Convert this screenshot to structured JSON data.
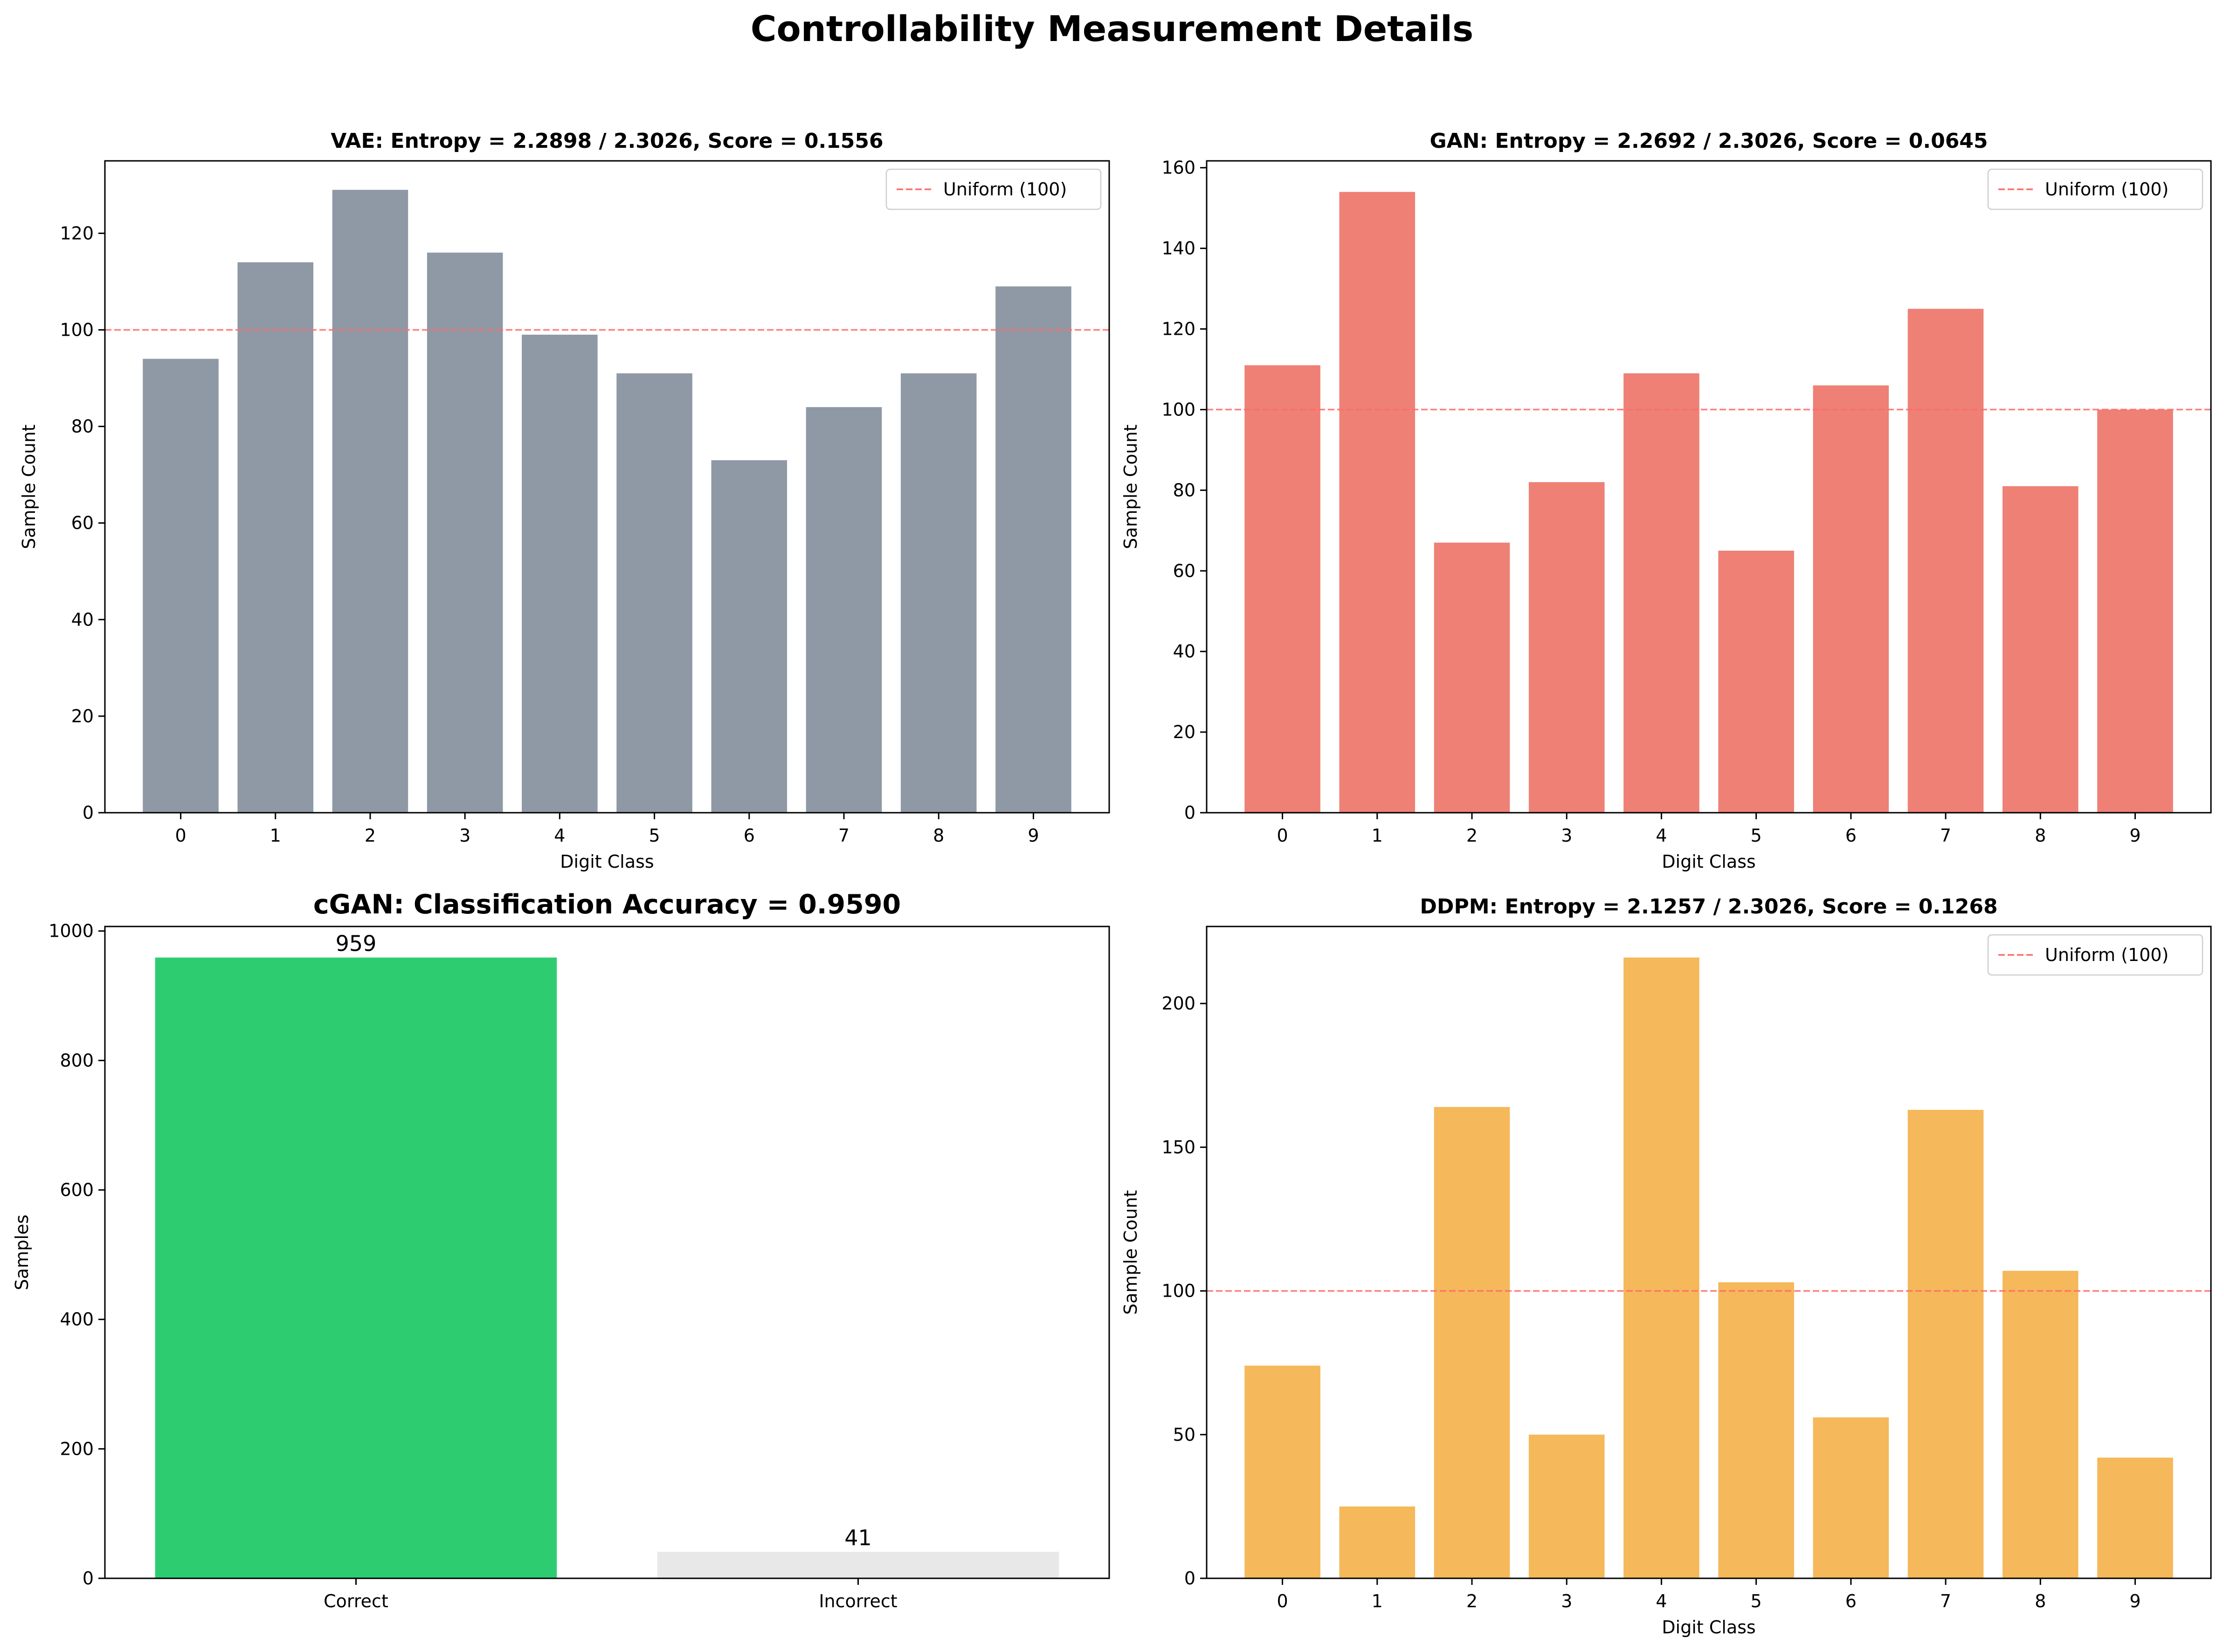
{
  "figure": {
    "title": "Controllability Measurement Details"
  },
  "chart_data": [
    {
      "id": "vae",
      "type": "bar",
      "title": "VAE: Entropy = 2.2898 / 2.3026, Score = 0.1556",
      "xlabel": "Digit Class",
      "ylabel": "Sample Count",
      "categories": [
        "0",
        "1",
        "2",
        "3",
        "4",
        "5",
        "6",
        "7",
        "8",
        "9"
      ],
      "values": [
        94,
        114,
        129,
        116,
        99,
        91,
        73,
        84,
        91,
        109
      ],
      "ylim": [
        0,
        135
      ],
      "yticks": [
        0,
        20,
        40,
        60,
        80,
        100,
        120
      ],
      "color": "#8e99a5",
      "reference_line": {
        "value": 100,
        "label": "Uniform (100)",
        "color": "#ff6b6b"
      },
      "legend": "top-right",
      "grid": false
    },
    {
      "id": "gan",
      "type": "bar",
      "title": "GAN: Entropy = 2.2692 / 2.3026, Score = 0.0645",
      "xlabel": "Digit Class",
      "ylabel": "Sample Count",
      "categories": [
        "0",
        "1",
        "2",
        "3",
        "4",
        "5",
        "6",
        "7",
        "8",
        "9"
      ],
      "values": [
        111,
        154,
        67,
        82,
        109,
        65,
        106,
        125,
        81,
        100
      ],
      "ylim": [
        0,
        161.7
      ],
      "yticks": [
        0,
        20,
        40,
        60,
        80,
        100,
        120,
        140,
        160
      ],
      "color": "#ee8075",
      "reference_line": {
        "value": 100,
        "label": "Uniform (100)",
        "color": "#ff6b6b"
      },
      "legend": "top-right",
      "grid": false
    },
    {
      "id": "cgan",
      "type": "bar",
      "title": "cGAN: Classification Accuracy = 0.9590",
      "xlabel": "",
      "ylabel": "Samples",
      "categories": [
        "Correct",
        "Incorrect"
      ],
      "values": [
        959,
        41
      ],
      "data_labels": [
        "959",
        "41"
      ],
      "colors": [
        "#2ecc71",
        "#e8e8e8"
      ],
      "ylim": [
        0,
        1007
      ],
      "yticks": [
        0,
        200,
        400,
        600,
        800,
        1000
      ],
      "grid": false
    },
    {
      "id": "ddpm",
      "type": "bar",
      "title": "DDPM: Entropy = 2.1257 / 2.3026, Score = 0.1268",
      "xlabel": "Digit Class",
      "ylabel": "Sample Count",
      "categories": [
        "0",
        "1",
        "2",
        "3",
        "4",
        "5",
        "6",
        "7",
        "8",
        "9"
      ],
      "values": [
        74,
        25,
        164,
        50,
        216,
        103,
        56,
        163,
        107,
        42
      ],
      "ylim": [
        0,
        226.8
      ],
      "yticks": [
        0,
        50,
        100,
        150,
        200
      ],
      "color": "#f5b85a",
      "reference_line": {
        "value": 100,
        "label": "Uniform (100)",
        "color": "#ff6b6b"
      },
      "legend": "top-right",
      "grid": false
    }
  ]
}
